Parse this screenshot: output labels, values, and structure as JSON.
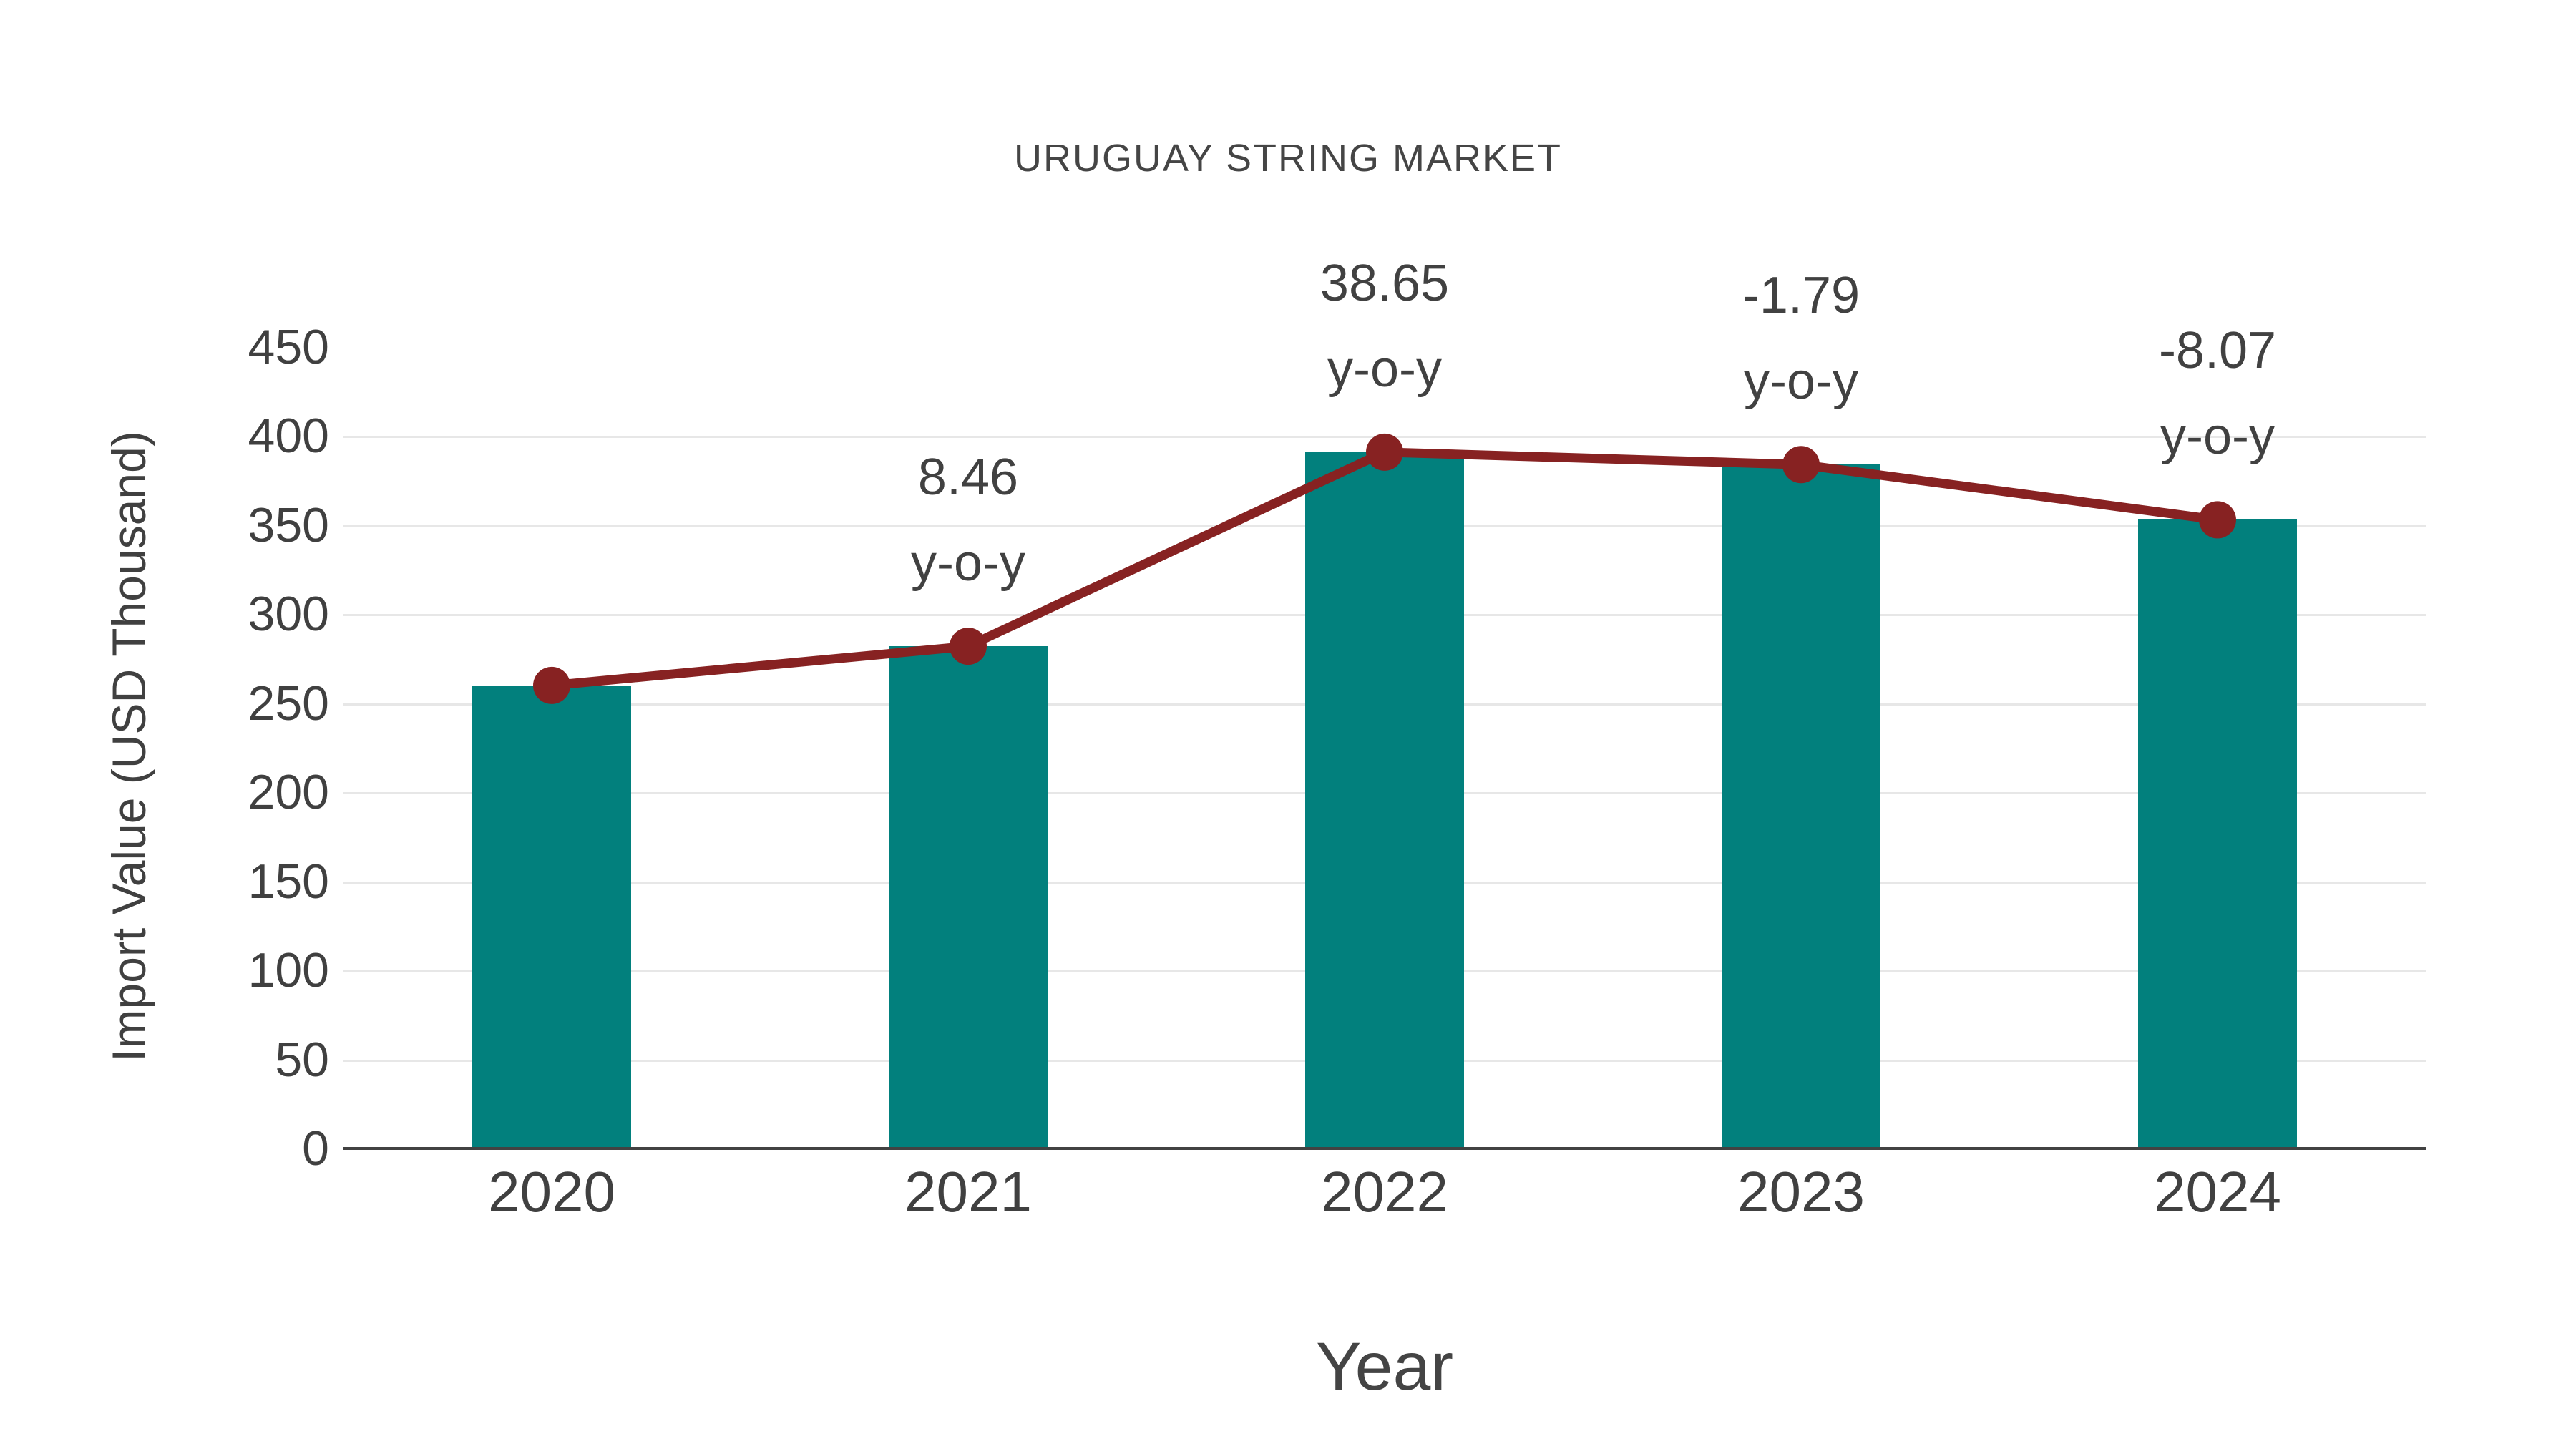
{
  "page": {
    "background": "#ffffff"
  },
  "chart_data": {
    "type": "bar",
    "overlay": "line",
    "title": "URUGUAY STRING MARKET",
    "xlabel": "Year",
    "ylabel": "Import Value (USD Thousand)",
    "categories": [
      "2020",
      "2021",
      "2022",
      "2023",
      "2024"
    ],
    "series": [
      {
        "name": "Import Value (USD Thousand)",
        "type": "bar",
        "values": [
          260,
          282,
          391,
          384,
          353
        ],
        "color": "#02807D"
      },
      {
        "name": "Import Value trend",
        "type": "line",
        "values": [
          260,
          282,
          391,
          384,
          353
        ],
        "color": "#872222"
      }
    ],
    "annotations": [
      {
        "category": "2021",
        "value": "8.46",
        "suffix": "y-o-y"
      },
      {
        "category": "2022",
        "value": "38.65",
        "suffix": "y-o-y"
      },
      {
        "category": "2023",
        "value": "-1.79",
        "suffix": "y-o-y"
      },
      {
        "category": "2024",
        "value": "-8.07",
        "suffix": "y-o-y"
      }
    ],
    "yticks": [
      0,
      50,
      100,
      150,
      200,
      250,
      300,
      350,
      400,
      450
    ],
    "ylim": [
      0,
      450
    ],
    "grid": true,
    "gridline_values": [
      50,
      100,
      150,
      200,
      250,
      300,
      350,
      400
    ],
    "legend_position": "none",
    "colors": {
      "bar": "#02807D",
      "line": "#872222",
      "marker": "#872222",
      "gridline": "#e7e7e7",
      "axis_line": "#424242",
      "text": "#404040"
    }
  }
}
